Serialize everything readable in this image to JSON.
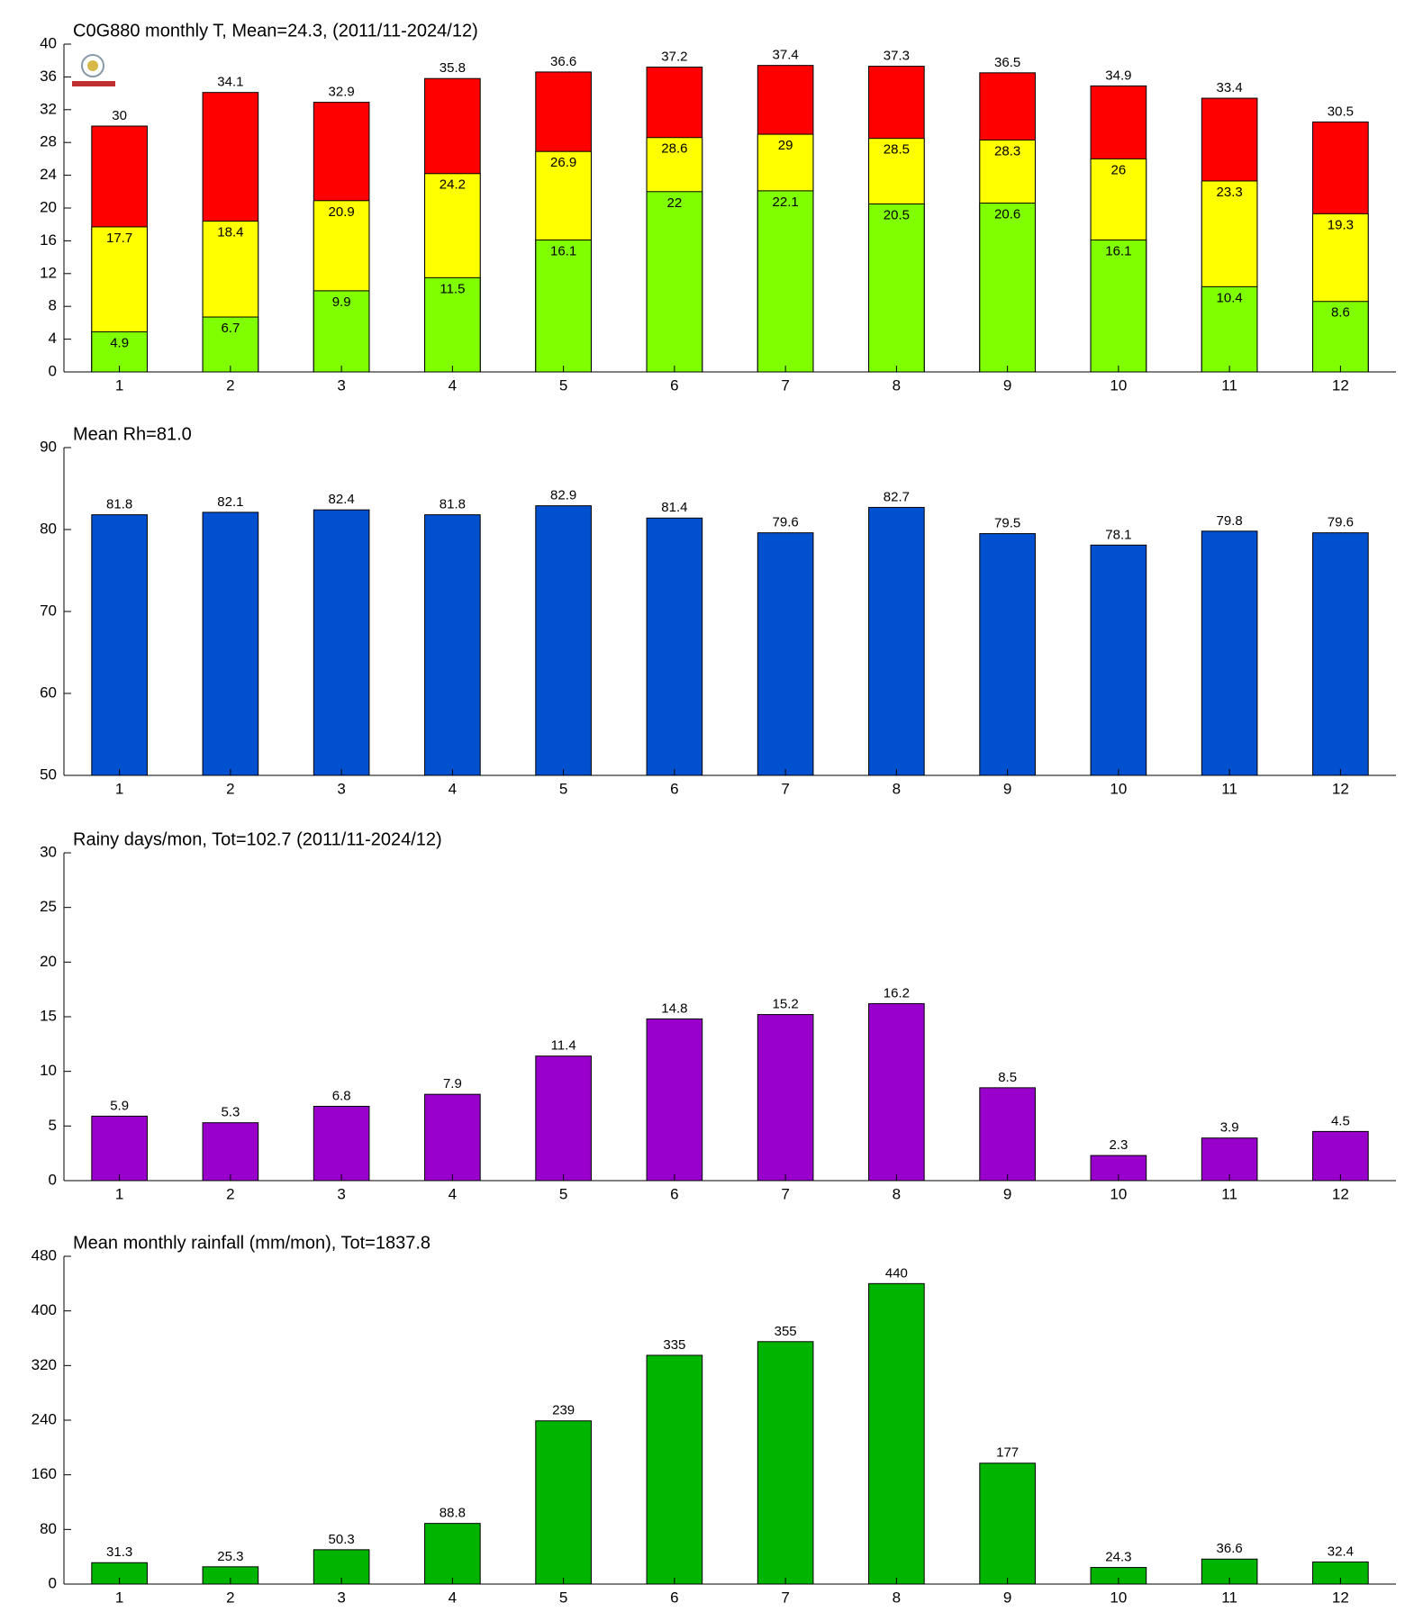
{
  "chart_data": [
    {
      "type": "bar",
      "barmode": "overlay",
      "title": "C0G880 monthly T, Mean=24.3, (2011/11-2024/12)",
      "categories": [
        "1",
        "2",
        "3",
        "4",
        "5",
        "6",
        "7",
        "8",
        "9",
        "10",
        "11",
        "12"
      ],
      "series": [
        {
          "color": "#ff0000",
          "values": [
            30,
            34.1,
            32.9,
            35.8,
            36.6,
            37.2,
            37.4,
            37.3,
            36.5,
            34.9,
            33.4,
            30.5
          ]
        },
        {
          "color": "#ffff00",
          "values": [
            17.7,
            18.4,
            20.9,
            24.2,
            26.9,
            28.6,
            29,
            28.5,
            28.3,
            26,
            23.3,
            19.3
          ]
        },
        {
          "color": "#80ff00",
          "values": [
            4.9,
            6.7,
            9.9,
            11.5,
            16.1,
            22,
            22.1,
            20.5,
            20.6,
            16.1,
            10.4,
            8.6
          ]
        }
      ],
      "ylim": [
        0,
        40
      ],
      "yticks": [
        0,
        4,
        8,
        12,
        16,
        20,
        24,
        28,
        32,
        36,
        40
      ]
    },
    {
      "type": "bar",
      "title": "Mean Rh=81.0",
      "categories": [
        "1",
        "2",
        "3",
        "4",
        "5",
        "6",
        "7",
        "8",
        "9",
        "10",
        "11",
        "12"
      ],
      "series": [
        {
          "color": "#0050d0",
          "values": [
            81.8,
            82.1,
            82.4,
            81.8,
            82.9,
            81.4,
            79.6,
            82.7,
            79.5,
            78.1,
            79.8,
            79.6
          ]
        }
      ],
      "ylim": [
        50,
        90
      ],
      "yticks": [
        50,
        60,
        70,
        80,
        90
      ]
    },
    {
      "type": "bar",
      "title": "Rainy days/mon, Tot=102.7 (2011/11-2024/12)",
      "categories": [
        "1",
        "2",
        "3",
        "4",
        "5",
        "6",
        "7",
        "8",
        "9",
        "10",
        "11",
        "12"
      ],
      "series": [
        {
          "color": "#9900cc",
          "values": [
            5.9,
            5.3,
            6.8,
            7.9,
            11.4,
            14.8,
            15.2,
            16.2,
            8.5,
            2.3,
            3.9,
            4.5
          ]
        }
      ],
      "ylim": [
        0,
        30
      ],
      "yticks": [
        0,
        5,
        10,
        15,
        20,
        25,
        30
      ]
    },
    {
      "type": "bar",
      "title": "Mean monthly rainfall (mm/mon), Tot=1837.8",
      "categories": [
        "1",
        "2",
        "3",
        "4",
        "5",
        "6",
        "7",
        "8",
        "9",
        "10",
        "11",
        "12"
      ],
      "series": [
        {
          "color": "#00b400",
          "values": [
            31.3,
            25.3,
            50.3,
            88.8,
            239,
            335,
            355,
            440,
            177,
            24.3,
            36.6,
            32.4
          ]
        }
      ],
      "ylim": [
        0,
        480
      ],
      "yticks": [
        0,
        80,
        160,
        240,
        320,
        400,
        480
      ]
    }
  ]
}
